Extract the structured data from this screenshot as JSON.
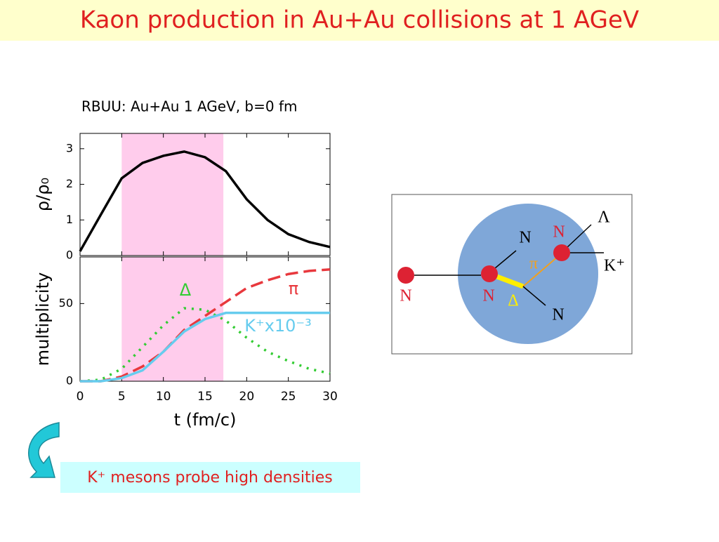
{
  "slide_title": "Kaon production in  Au+Au collisions at 1 AGeV",
  "caption": "K⁺ mesons probe high densities",
  "chart_data": [
    {
      "type": "line",
      "title": "RBUU:   Au+Au 1 AGeV, b=0  fm",
      "ylabel": "ρ/ρ₀",
      "x": [
        0,
        2.5,
        5,
        7.5,
        10,
        12.5,
        15,
        17.5,
        20,
        22.5,
        25,
        27.5,
        30
      ],
      "series": [
        {
          "color": "#000000",
          "dash": "solid",
          "values": [
            0.12,
            1.15,
            2.17,
            2.6,
            2.8,
            2.92,
            2.76,
            2.37,
            1.58,
            1.0,
            0.6,
            0.38,
            0.24
          ]
        }
      ],
      "xlim": [
        0,
        30
      ],
      "xticks": [
        0,
        5,
        10,
        15,
        20,
        25,
        30
      ],
      "ylim": [
        0,
        3.43
      ],
      "yticks": [
        0,
        1,
        2,
        3
      ],
      "highlight_x": [
        5,
        17.2
      ],
      "highlight_color": "#ffccec"
    },
    {
      "type": "line",
      "xlabel": "t  (fm/c)",
      "ylabel": "multiplicity",
      "x": [
        0,
        2.5,
        5,
        7.5,
        10,
        12.5,
        15,
        17.5,
        20,
        22.5,
        25,
        27.5,
        30
      ],
      "series": [
        {
          "name": "Δ",
          "color": "#33cc33",
          "dash": "dotted",
          "values": [
            0,
            1,
            8,
            22,
            36,
            47,
            46,
            39,
            28,
            19,
            13,
            8,
            5
          ]
        },
        {
          "name": "π",
          "color": "#e8383d",
          "dash": "dashed",
          "values": [
            0,
            0,
            3,
            9.5,
            19,
            33,
            42,
            51,
            60,
            65,
            69,
            71,
            72
          ]
        },
        {
          "name": "K⁺x10⁻³",
          "color": "#66ccee",
          "dash": "solid",
          "values": [
            0,
            0,
            2,
            7,
            19,
            32,
            40,
            44,
            44,
            44,
            44,
            44,
            44
          ]
        }
      ],
      "xlim": [
        0,
        30
      ],
      "xticks": [
        0,
        5,
        10,
        15,
        20,
        25,
        30
      ],
      "ylim": [
        0,
        80
      ],
      "yticks": [
        0,
        50
      ],
      "highlight_x": [
        5,
        17.2
      ],
      "highlight_color": "#ffccec"
    }
  ],
  "diagram": {
    "labels": [
      "N",
      "N",
      "N",
      "Δ",
      "π",
      "N",
      "Λ",
      "K⁺",
      "N"
    ]
  }
}
